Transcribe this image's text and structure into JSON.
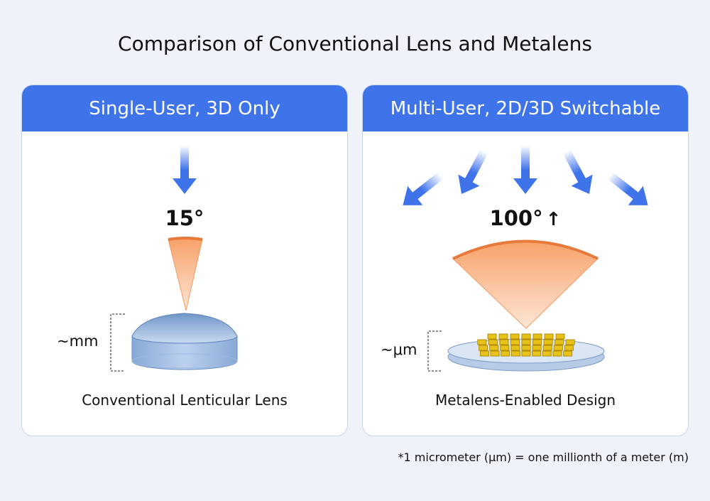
{
  "title": "Comparison of Conventional Lens and Metalens",
  "left": {
    "header": "Single-User, 3D Only",
    "angle": "15°",
    "scale": "~mm",
    "caption": "Conventional Lenticular Lens"
  },
  "right": {
    "header": "Multi-User, 2D/3D Switchable",
    "angle": "100°",
    "angle_icon": "arrow-up-icon",
    "scale": "~μm",
    "caption": "Metalens-Enabled Design"
  },
  "footnote": "*1 micrometer (μm) = one millionth of a meter (m)",
  "colors": {
    "header": "#3f73ea",
    "arrow": "#3f73ea",
    "cone": "#f59a5e",
    "lens": "#8fb0da",
    "meta": "#e8c21a"
  }
}
